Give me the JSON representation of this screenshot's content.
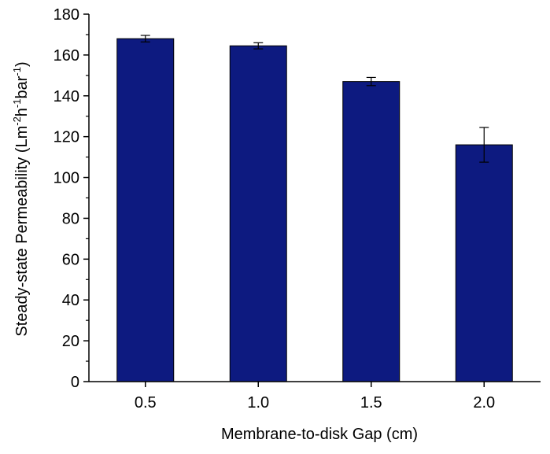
{
  "chart_data": {
    "type": "bar",
    "title": "",
    "xlabel": "Membrane-to-disk Gap (cm)",
    "ylabel": {
      "base": "Steady-state Permeability (Lm",
      "sup1": "-2",
      "mid1": "h",
      "sup2": "-1",
      "mid2": "bar",
      "sup3": "-1",
      "end": ")"
    },
    "categories": [
      "0.5",
      "1.0",
      "1.5",
      "2.0"
    ],
    "values": [
      168,
      164.5,
      147,
      116
    ],
    "errors": [
      1.6,
      1.5,
      2.0,
      8.5
    ],
    "ylim": [
      0,
      180
    ],
    "yticks": [
      "0",
      "20",
      "40",
      "60",
      "80",
      "100",
      "120",
      "140",
      "160",
      "180"
    ],
    "grid": false,
    "legend": "none",
    "colors": {
      "bar_fill": "#0d1a80",
      "bar_stroke": "#000000",
      "axis": "#000000"
    }
  }
}
